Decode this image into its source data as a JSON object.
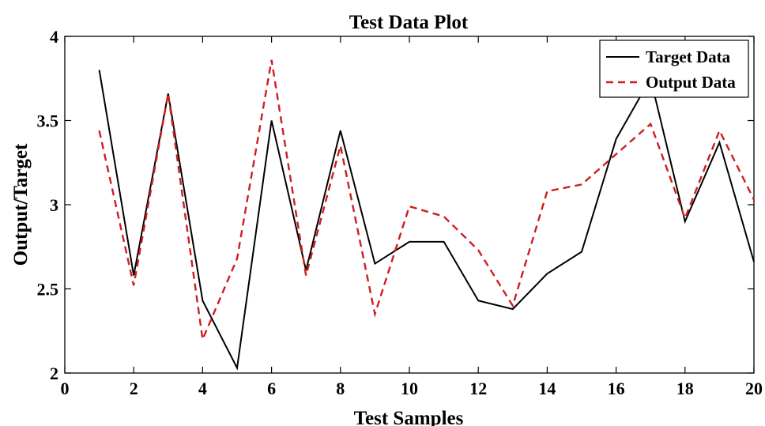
{
  "chart_data": {
    "type": "line",
    "title": "Test Data Plot",
    "xlabel": "Test Samples",
    "ylabel": "Output/Target",
    "xlim": [
      0,
      20
    ],
    "ylim": [
      2,
      4
    ],
    "xticks": [
      0,
      2,
      4,
      6,
      8,
      10,
      12,
      14,
      16,
      18,
      20
    ],
    "yticks": [
      2,
      2.5,
      3,
      3.5,
      4
    ],
    "ytick_labels": [
      "2",
      "2.5",
      "3",
      "3.5",
      "4"
    ],
    "x": [
      1,
      2,
      3,
      4,
      5,
      6,
      7,
      8,
      9,
      10,
      11,
      12,
      13,
      14,
      15,
      16,
      17,
      18,
      19,
      20
    ],
    "grid": false,
    "legend_position": "top-right",
    "series": [
      {
        "name": "Target Data",
        "color": "#000000",
        "style": "solid",
        "values": [
          3.8,
          2.58,
          3.66,
          2.43,
          2.03,
          3.5,
          2.61,
          3.44,
          2.65,
          2.78,
          2.78,
          2.43,
          2.38,
          2.59,
          2.72,
          3.39,
          3.75,
          2.9,
          3.37,
          2.66
        ]
      },
      {
        "name": "Output Data",
        "color": "#cc1f1f",
        "style": "dashed",
        "values": [
          3.44,
          2.52,
          3.66,
          2.2,
          2.68,
          3.86,
          2.58,
          3.35,
          2.35,
          2.99,
          2.93,
          2.73,
          2.4,
          3.08,
          3.12,
          3.3,
          3.48,
          2.92,
          3.44,
          3.03
        ]
      }
    ]
  }
}
